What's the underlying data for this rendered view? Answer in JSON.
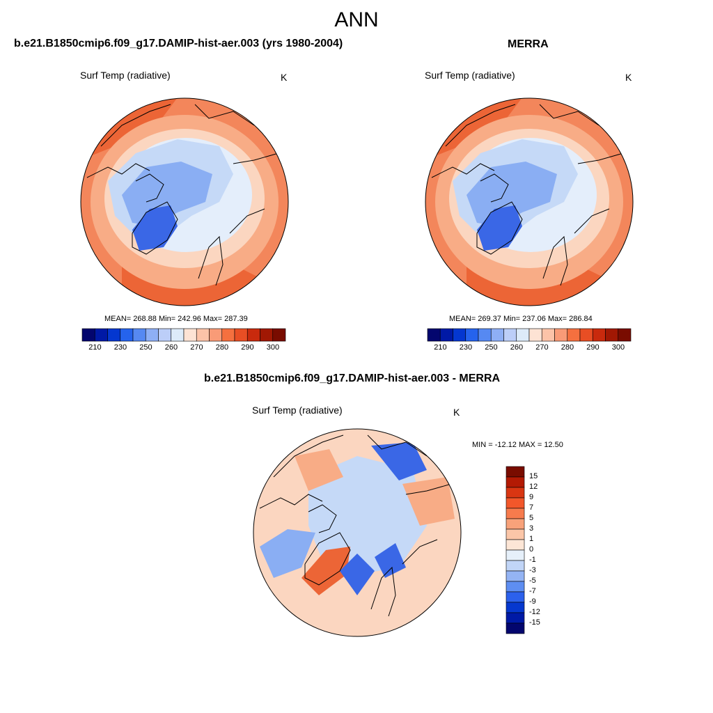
{
  "title": "ANN",
  "panels": {
    "model": {
      "title": "b.e21.B1850cmip6.f09_g17.DAMIP-hist-aer.003 (yrs 1980-2004)",
      "variable": "Surf Temp (radiative)",
      "units": "K",
      "stats": "MEAN= 268.88  Min= 242.96  Max= 287.39"
    },
    "obs": {
      "title": "MERRA",
      "variable": "Surf Temp (radiative)",
      "units": "K",
      "stats": "MEAN= 269.37  Min= 237.06  Max= 286.84"
    },
    "diff": {
      "title": "b.e21.B1850cmip6.f09_g17.DAMIP-hist-aer.003 - MERRA",
      "variable": "Surf Temp (radiative)",
      "units": "K",
      "stats": "MIN = -12.12 MAX =  12.50"
    }
  },
  "colorbars": {
    "absolute": {
      "orientation": "horizontal",
      "tick_labels": [
        "210",
        "230",
        "250",
        "260",
        "270",
        "280",
        "290",
        "300"
      ],
      "colors": [
        "#03066e",
        "#0019a6",
        "#0437d0",
        "#2563ed",
        "#5689f2",
        "#8eaff5",
        "#bccef8",
        "#ddebf9",
        "#fde3d4",
        "#fcc3a8",
        "#f99b77",
        "#f5703f",
        "#e84e24",
        "#c92a0d",
        "#a11803",
        "#790c00"
      ]
    },
    "difference": {
      "orientation": "vertical",
      "tick_labels": [
        "15",
        "12",
        "9",
        "7",
        "5",
        "3",
        "1",
        "0",
        "-1",
        "-3",
        "-5",
        "-7",
        "-9",
        "-12",
        "-15"
      ],
      "colors": [
        "#790c00",
        "#b31a04",
        "#d93612",
        "#f2572a",
        "#f77b4d",
        "#f8a27a",
        "#fbc6a8",
        "#fde6d6",
        "#e6f0fa",
        "#c1d5f7",
        "#94b4f4",
        "#5e8ef2",
        "#2c61ec",
        "#0638cf",
        "#001aa6",
        "#03066e"
      ]
    }
  },
  "map_colors": {
    "deep_blue": "#3a67e6",
    "mid_blue": "#8aaef3",
    "light_blue": "#c5d9f7",
    "pale": "#e4eefb",
    "peach": "#fbd6c0",
    "light_orange": "#f8ac86",
    "orange": "#f3865b",
    "red_orange": "#ec6536"
  }
}
